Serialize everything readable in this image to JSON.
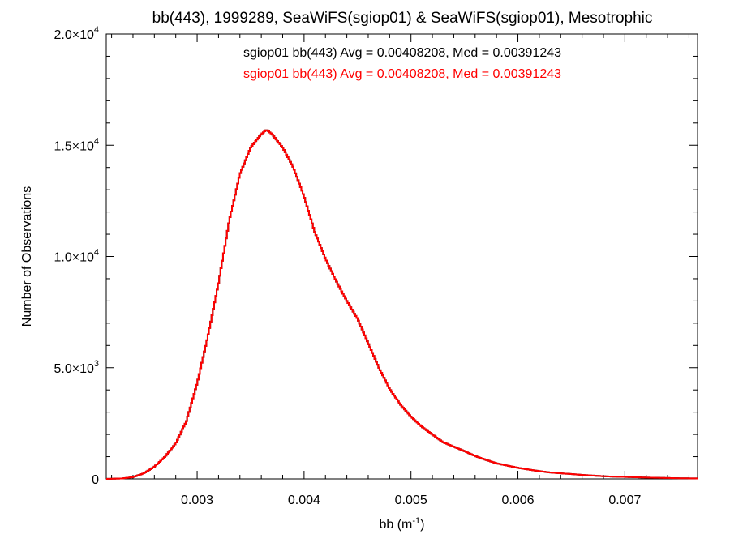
{
  "chart_data": {
    "type": "line",
    "style": "histogram-step",
    "title": "bb(443), 1999289, SeaWiFS(sgiop01) & SeaWiFS(sgiop01), Mesotrophic",
    "xlabel": {
      "base": "bb (m",
      "superscript": "-1",
      "suffix": ")"
    },
    "ylabel": "Number of Observations",
    "xlim": [
      0.00215,
      0.00768
    ],
    "ylim": [
      0,
      20000
    ],
    "xticks": [
      {
        "value": 0.003,
        "label": "0.003"
      },
      {
        "value": 0.004,
        "label": "0.004"
      },
      {
        "value": 0.005,
        "label": "0.005"
      },
      {
        "value": 0.006,
        "label": "0.006"
      },
      {
        "value": 0.007,
        "label": "0.007"
      }
    ],
    "yticks": [
      {
        "value": 0,
        "mantissa": "0",
        "exponent": ""
      },
      {
        "value": 5000,
        "mantissa": "5.0×10",
        "exponent": "3"
      },
      {
        "value": 10000,
        "mantissa": "1.0×10",
        "exponent": "4"
      },
      {
        "value": 15000,
        "mantissa": "1.5×10",
        "exponent": "4"
      },
      {
        "value": 20000,
        "mantissa": "2.0×10",
        "exponent": "4"
      }
    ],
    "grid": false,
    "annotations": [
      {
        "text": "sgiop01 bb(443) Avg = 0.00408208, Med = 0.00391243",
        "color": "#000000"
      },
      {
        "text": "sgiop01 bb(443) Avg = 0.00408208, Med = 0.00391243",
        "color": "#ff0000"
      }
    ],
    "series": [
      {
        "color": "#000000",
        "x": [
          0.00215,
          0.0023,
          0.0024,
          0.0025,
          0.0026,
          0.0027,
          0.0028,
          0.0029,
          0.003,
          0.0031,
          0.0032,
          0.0033,
          0.0034,
          0.0035,
          0.00355,
          0.0036,
          0.00365,
          0.0037,
          0.00375,
          0.0038,
          0.0039,
          0.004,
          0.0041,
          0.0042,
          0.0043,
          0.0044,
          0.0045,
          0.0046,
          0.0047,
          0.0048,
          0.0049,
          0.005,
          0.0051,
          0.0052,
          0.0053,
          0.0054,
          0.0055,
          0.0056,
          0.0057,
          0.0058,
          0.0059,
          0.006,
          0.0061,
          0.0062,
          0.0063,
          0.0064,
          0.0065,
          0.0066,
          0.0067,
          0.0068,
          0.0069,
          0.007,
          0.0071,
          0.0072,
          0.0073,
          0.0074,
          0.0075,
          0.0076,
          0.00768
        ],
        "y": [
          0,
          20,
          80,
          250,
          550,
          1000,
          1600,
          2600,
          4300,
          6400,
          8800,
          11600,
          13700,
          14900,
          15200,
          15500,
          15700,
          15500,
          15200,
          14900,
          14000,
          12700,
          11100,
          9900,
          8900,
          8000,
          7200,
          6100,
          5000,
          4050,
          3350,
          2800,
          2350,
          2000,
          1650,
          1450,
          1250,
          1030,
          860,
          700,
          600,
          500,
          420,
          350,
          290,
          250,
          220,
          180,
          150,
          120,
          100,
          90,
          75,
          60,
          50,
          40,
          30,
          25,
          20
        ]
      },
      {
        "color": "#ff0000",
        "x": [
          0.00215,
          0.0023,
          0.0024,
          0.0025,
          0.0026,
          0.0027,
          0.0028,
          0.0029,
          0.003,
          0.0031,
          0.0032,
          0.0033,
          0.0034,
          0.0035,
          0.00355,
          0.0036,
          0.00365,
          0.0037,
          0.00375,
          0.0038,
          0.0039,
          0.004,
          0.0041,
          0.0042,
          0.0043,
          0.0044,
          0.0045,
          0.0046,
          0.0047,
          0.0048,
          0.0049,
          0.005,
          0.0051,
          0.0052,
          0.0053,
          0.0054,
          0.0055,
          0.0056,
          0.0057,
          0.0058,
          0.0059,
          0.006,
          0.0061,
          0.0062,
          0.0063,
          0.0064,
          0.0065,
          0.0066,
          0.0067,
          0.0068,
          0.0069,
          0.007,
          0.0071,
          0.0072,
          0.0073,
          0.0074,
          0.0075,
          0.0076,
          0.00768
        ],
        "y": [
          0,
          20,
          80,
          250,
          550,
          1000,
          1600,
          2600,
          4300,
          6400,
          8800,
          11600,
          13700,
          14900,
          15200,
          15500,
          15700,
          15500,
          15200,
          14900,
          14000,
          12700,
          11100,
          9900,
          8900,
          8000,
          7200,
          6100,
          5000,
          4050,
          3350,
          2800,
          2350,
          2000,
          1650,
          1450,
          1250,
          1030,
          860,
          700,
          600,
          500,
          420,
          350,
          290,
          250,
          220,
          180,
          150,
          120,
          100,
          90,
          75,
          60,
          50,
          40,
          30,
          25,
          20
        ]
      }
    ]
  }
}
